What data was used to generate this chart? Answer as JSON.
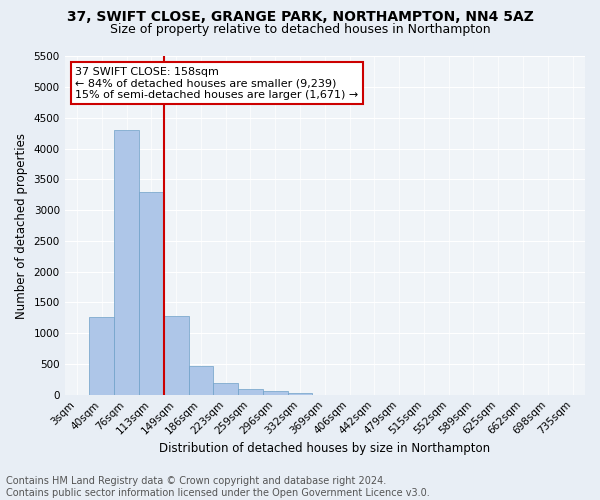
{
  "title": "37, SWIFT CLOSE, GRANGE PARK, NORTHAMPTON, NN4 5AZ",
  "subtitle": "Size of property relative to detached houses in Northampton",
  "xlabel": "Distribution of detached houses by size in Northampton",
  "ylabel": "Number of detached properties",
  "categories": [
    "3sqm",
    "40sqm",
    "76sqm",
    "113sqm",
    "149sqm",
    "186sqm",
    "223sqm",
    "259sqm",
    "296sqm",
    "332sqm",
    "369sqm",
    "406sqm",
    "442sqm",
    "479sqm",
    "515sqm",
    "552sqm",
    "589sqm",
    "625sqm",
    "662sqm",
    "698sqm",
    "735sqm"
  ],
  "values": [
    0,
    1260,
    4300,
    3290,
    1280,
    475,
    195,
    95,
    65,
    35,
    0,
    0,
    0,
    0,
    0,
    0,
    0,
    0,
    0,
    0,
    0
  ],
  "bar_color": "#aec6e8",
  "bar_edge_color": "#6ea0c8",
  "vline_x_index": 4,
  "vline_color": "#cc0000",
  "annotation_text": "37 SWIFT CLOSE: 158sqm\n← 84% of detached houses are smaller (9,239)\n15% of semi-detached houses are larger (1,671) →",
  "annotation_box_color": "#ffffff",
  "annotation_box_edge_color": "#cc0000",
  "ylim": [
    0,
    5500
  ],
  "yticks": [
    0,
    500,
    1000,
    1500,
    2000,
    2500,
    3000,
    3500,
    4000,
    4500,
    5000,
    5500
  ],
  "footer_line1": "Contains HM Land Registry data © Crown copyright and database right 2024.",
  "footer_line2": "Contains public sector information licensed under the Open Government Licence v3.0.",
  "bg_color": "#e8eef5",
  "plot_bg_color": "#f0f4f8",
  "title_fontsize": 10,
  "subtitle_fontsize": 9,
  "axis_label_fontsize": 8.5,
  "tick_fontsize": 7.5,
  "footer_fontsize": 7,
  "annotation_fontsize": 8
}
